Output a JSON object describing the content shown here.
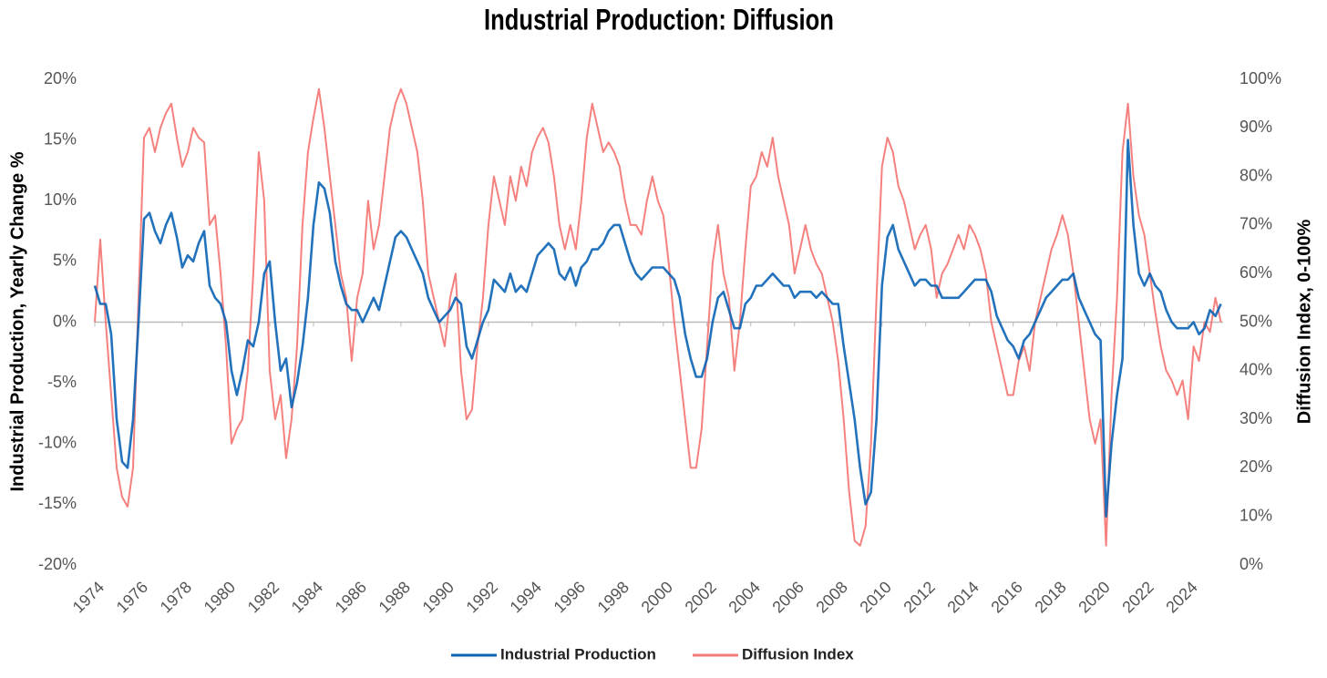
{
  "chart_data": {
    "type": "line",
    "title": "Industrial Production: Diffusion",
    "y_label": "Industrial Production, Yearly Change %",
    "y2_label": "Diffusion Index, 0-100%",
    "x": [
      1974,
      1974.25,
      1974.5,
      1974.75,
      1975,
      1975.25,
      1975.5,
      1975.75,
      1976,
      1976.25,
      1976.5,
      1976.75,
      1977,
      1977.25,
      1977.5,
      1977.75,
      1978,
      1978.25,
      1978.5,
      1978.75,
      1979,
      1979.25,
      1979.5,
      1979.75,
      1980,
      1980.25,
      1980.5,
      1980.75,
      1981,
      1981.25,
      1981.5,
      1981.75,
      1982,
      1982.25,
      1982.5,
      1982.75,
      1983,
      1983.25,
      1983.5,
      1983.75,
      1984,
      1984.25,
      1984.5,
      1984.75,
      1985,
      1985.25,
      1985.5,
      1985.75,
      1986,
      1986.25,
      1986.5,
      1986.75,
      1987,
      1987.25,
      1987.5,
      1987.75,
      1988,
      1988.25,
      1988.5,
      1988.75,
      1989,
      1989.25,
      1989.5,
      1989.75,
      1990,
      1990.25,
      1990.5,
      1990.75,
      1991,
      1991.25,
      1991.5,
      1991.75,
      1992,
      1992.25,
      1992.5,
      1992.75,
      1993,
      1993.25,
      1993.5,
      1993.75,
      1994,
      1994.25,
      1994.5,
      1994.75,
      1995,
      1995.25,
      1995.5,
      1995.75,
      1996,
      1996.25,
      1996.5,
      1996.75,
      1997,
      1997.25,
      1997.5,
      1997.75,
      1998,
      1998.25,
      1998.5,
      1998.75,
      1999,
      1999.25,
      1999.5,
      1999.75,
      2000,
      2000.25,
      2000.5,
      2000.75,
      2001,
      2001.25,
      2001.5,
      2001.75,
      2002,
      2002.25,
      2002.5,
      2002.75,
      2003,
      2003.25,
      2003.5,
      2003.75,
      2004,
      2004.25,
      2004.5,
      2004.75,
      2005,
      2005.25,
      2005.5,
      2005.75,
      2006,
      2006.25,
      2006.5,
      2006.75,
      2007,
      2007.25,
      2007.5,
      2007.75,
      2008,
      2008.25,
      2008.5,
      2008.75,
      2009,
      2009.25,
      2009.5,
      2009.75,
      2010,
      2010.25,
      2010.5,
      2010.75,
      2011,
      2011.25,
      2011.5,
      2011.75,
      2012,
      2012.25,
      2012.5,
      2012.75,
      2013,
      2013.25,
      2013.5,
      2013.75,
      2014,
      2014.25,
      2014.5,
      2014.75,
      2015,
      2015.25,
      2015.5,
      2015.75,
      2016,
      2016.25,
      2016.5,
      2016.75,
      2017,
      2017.25,
      2017.5,
      2017.75,
      2018,
      2018.25,
      2018.5,
      2018.75,
      2019,
      2019.25,
      2019.5,
      2019.75,
      2020,
      2020.25,
      2020.5,
      2020.75,
      2021,
      2021.25,
      2021.5,
      2021.75,
      2022,
      2022.25,
      2022.5,
      2022.75,
      2023,
      2023.25,
      2023.5,
      2023.75,
      2024,
      2024.25,
      2024.5,
      2024.75,
      2025,
      2025.25,
      2025.5
    ],
    "series": [
      {
        "name": "Industrial Production",
        "color": "#0b63b5",
        "axis": "y",
        "values": [
          3,
          1.5,
          1.5,
          -1,
          -8,
          -11.5,
          -12,
          -8,
          0,
          8.5,
          9,
          7.5,
          6.5,
          8,
          9,
          7,
          4.5,
          5.5,
          5,
          6.5,
          7.5,
          3,
          2,
          1.5,
          0,
          -4,
          -6,
          -4,
          -1.5,
          -2,
          0,
          4,
          5,
          0,
          -4,
          -3,
          -7,
          -5,
          -2,
          2,
          8,
          11.5,
          11,
          9,
          5,
          3,
          1.5,
          1,
          1,
          0,
          1,
          2,
          1,
          3,
          5,
          7,
          7.5,
          7,
          6,
          5,
          4,
          2,
          1,
          0,
          0.5,
          1,
          2,
          1.5,
          -2,
          -3,
          -1.5,
          0,
          1,
          3.5,
          3,
          2.5,
          4,
          2.5,
          3,
          2.5,
          4,
          5.5,
          6,
          6.5,
          6,
          4,
          3.5,
          4.5,
          3,
          4.5,
          5,
          6,
          6,
          6.5,
          7.5,
          8,
          8,
          6.5,
          5,
          4,
          3.5,
          4,
          4.5,
          4.5,
          4.5,
          4,
          3.5,
          2,
          -1,
          -3,
          -4.5,
          -4.5,
          -3,
          0,
          2,
          2.5,
          1,
          -0.5,
          -0.5,
          1.5,
          2,
          3,
          3,
          3.5,
          4,
          3.5,
          3,
          3,
          2,
          2.5,
          2.5,
          2.5,
          2,
          2.5,
          2,
          1.5,
          1.5,
          -2,
          -5,
          -8,
          -12,
          -15,
          -14,
          -8,
          3,
          7,
          8,
          6,
          5,
          4,
          3,
          3.5,
          3.5,
          3,
          3,
          2,
          2,
          2,
          2,
          2.5,
          3,
          3.5,
          3.5,
          3.5,
          2.5,
          0.5,
          -0.5,
          -1.5,
          -2,
          -3,
          -1.5,
          -1,
          0,
          1,
          2,
          2.5,
          3,
          3.5,
          3.5,
          4,
          2,
          1,
          0,
          -1,
          -1.5,
          -16,
          -10,
          -6,
          -3,
          15,
          8,
          4,
          3,
          4,
          3,
          2.5,
          1,
          0,
          -0.5,
          -0.5,
          -0.5,
          0,
          -1,
          -0.5,
          1,
          0.5,
          1.5
        ]
      },
      {
        "name": "Diffusion Index",
        "color": "#f47a78",
        "axis": "y2",
        "values": [
          50,
          67,
          50,
          35,
          20,
          14,
          12,
          20,
          55,
          88,
          90,
          85,
          90,
          93,
          95,
          88,
          82,
          85,
          90,
          88,
          87,
          70,
          72,
          60,
          45,
          25,
          28,
          30,
          40,
          60,
          85,
          75,
          40,
          30,
          35,
          22,
          30,
          45,
          70,
          85,
          92,
          98,
          90,
          80,
          70,
          60,
          55,
          42,
          55,
          60,
          75,
          65,
          70,
          80,
          90,
          95,
          98,
          95,
          90,
          85,
          75,
          60,
          55,
          50,
          45,
          55,
          60,
          40,
          30,
          32,
          45,
          55,
          70,
          80,
          75,
          70,
          80,
          75,
          82,
          78,
          85,
          88,
          90,
          87,
          80,
          70,
          65,
          70,
          65,
          75,
          88,
          95,
          90,
          85,
          87,
          85,
          82,
          75,
          70,
          70,
          68,
          75,
          80,
          75,
          72,
          62,
          50,
          40,
          30,
          20,
          20,
          28,
          45,
          62,
          70,
          60,
          55,
          40,
          50,
          65,
          78,
          80,
          85,
          82,
          88,
          80,
          75,
          70,
          60,
          65,
          70,
          65,
          62,
          60,
          55,
          50,
          42,
          30,
          15,
          5,
          4,
          8,
          25,
          55,
          82,
          88,
          85,
          78,
          75,
          70,
          65,
          68,
          70,
          65,
          55,
          60,
          62,
          65,
          68,
          65,
          70,
          68,
          65,
          60,
          50,
          45,
          40,
          35,
          35,
          42,
          45,
          40,
          50,
          55,
          60,
          65,
          68,
          72,
          68,
          60,
          50,
          40,
          30,
          25,
          30,
          4,
          35,
          55,
          85,
          95,
          80,
          72,
          68,
          60,
          52,
          45,
          40,
          38,
          35,
          38,
          30,
          45,
          42,
          50,
          48,
          55,
          50
        ]
      }
    ],
    "xlim": [
      1974,
      2025.6
    ],
    "xticks": [
      1974,
      1976,
      1978,
      1980,
      1982,
      1984,
      1986,
      1988,
      1990,
      1992,
      1994,
      1996,
      1998,
      2000,
      2002,
      2004,
      2006,
      2008,
      2010,
      2012,
      2014,
      2016,
      2018,
      2020,
      2022,
      2024
    ],
    "ylim": [
      -20,
      20
    ],
    "yticks": [
      {
        "value": -20,
        "label": "-20%"
      },
      {
        "value": -15,
        "label": "-15%"
      },
      {
        "value": -10,
        "label": "-10%"
      },
      {
        "value": -5,
        "label": "-5%"
      },
      {
        "value": 0,
        "label": "0%"
      },
      {
        "value": 5,
        "label": "5%"
      },
      {
        "value": 10,
        "label": "10%"
      },
      {
        "value": 15,
        "label": "15%"
      },
      {
        "value": 20,
        "label": "20%"
      }
    ],
    "y2lim": [
      0,
      100
    ],
    "y2ticks": [
      {
        "value": 0,
        "label": "0%"
      },
      {
        "value": 10,
        "label": "10%"
      },
      {
        "value": 20,
        "label": "20%"
      },
      {
        "value": 30,
        "label": "30%"
      },
      {
        "value": 40,
        "label": "40%"
      },
      {
        "value": 50,
        "label": "50%"
      },
      {
        "value": 60,
        "label": "60%"
      },
      {
        "value": 70,
        "label": "70%"
      },
      {
        "value": 80,
        "label": "80%"
      },
      {
        "value": 90,
        "label": "90%"
      },
      {
        "value": 100,
        "label": "100%"
      }
    ],
    "legend": "bottom"
  }
}
